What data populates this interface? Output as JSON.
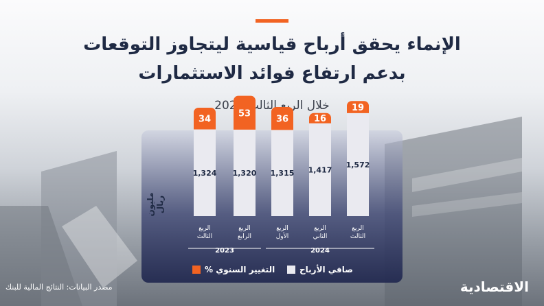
{
  "header": {
    "title_line1": "الإنماء يحقق أرباح قياسية ليتجاوز التوقعات",
    "title_line2": "بدعم ارتفاع فوائد الاستثمارات",
    "subtitle": "خلال الربع الثالث 2024"
  },
  "chart_data": {
    "type": "bar",
    "title": "",
    "ylabel": "مليون ريال",
    "categories": [
      [
        "الربع",
        "الثالث"
      ],
      [
        "الربع",
        "الرابع"
      ],
      [
        "الربع",
        "الأول"
      ],
      [
        "الربع",
        "الثاني"
      ],
      [
        "الربع",
        "الثالث"
      ]
    ],
    "year_groups": [
      {
        "label": "2023",
        "from": 0,
        "to": 1
      },
      {
        "label": "2024",
        "from": 2,
        "to": 4
      }
    ],
    "series": [
      {
        "name": "صافي الأرباح",
        "values": [
          1324,
          1320,
          1315,
          1417,
          1572
        ],
        "value_labels": [
          "1,324",
          "1,320",
          "1,315",
          "1,417",
          "1,572"
        ]
      },
      {
        "name": "التغيير السنوي %",
        "values": [
          34,
          53,
          36,
          16,
          19
        ]
      }
    ],
    "colors": {
      "profit": "#eaeaf0",
      "change": "#f26322"
    }
  },
  "legend": {
    "profit_label": "صافي الأرباح",
    "change_label": "التغيير السنوي %"
  },
  "footer": {
    "source": "مصدر البيانات: النتائج المالية للبنك",
    "brand": "الاقتصادية"
  }
}
